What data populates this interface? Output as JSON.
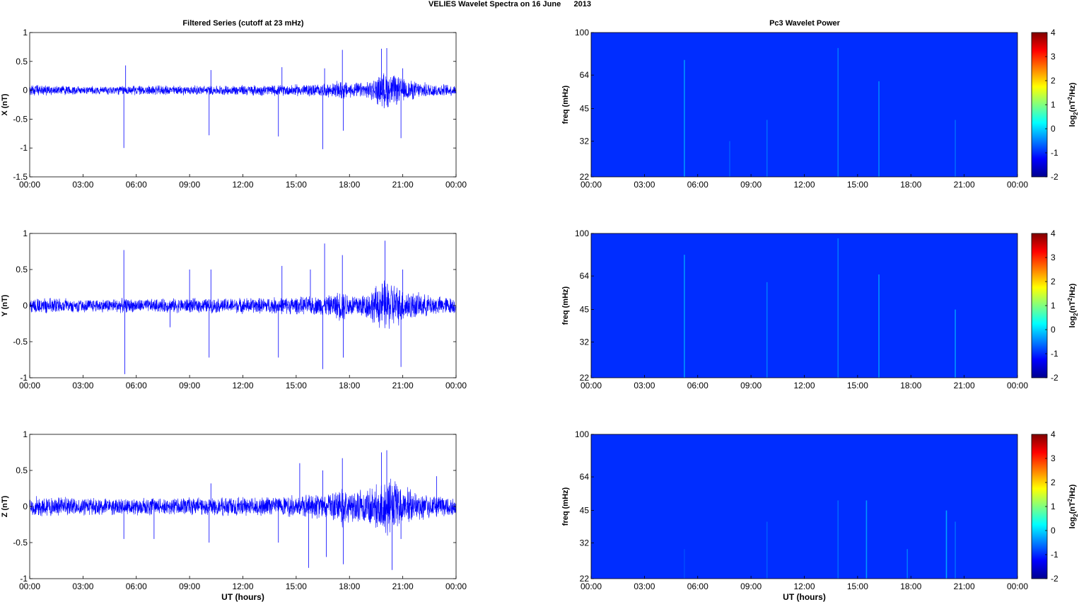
{
  "figure": {
    "title": "VELIES Wavelet Spectra on 16 June      2013",
    "left_column_title": "Filtered Series (cutoff at 23 mHz)",
    "right_column_title": "Pc3 Wavelet Power",
    "xlabel": "UT (hours)"
  },
  "colors": {
    "trace": "#0000ff",
    "spectrogram_background": "#0a1fa6",
    "colormap": "jet"
  },
  "chart_data": [
    {
      "type": "line",
      "panel": "X",
      "ylabel": "X (nT)",
      "xlim": [
        0,
        24
      ],
      "ylim": [
        -1.5,
        1
      ],
      "yticks": [
        -1.5,
        -1,
        -0.5,
        0,
        0.5,
        1
      ],
      "ytick_labels": [
        "-1.5",
        "-1",
        "-0.5",
        "0",
        "0.5",
        "1"
      ],
      "xtick_labels": [
        "00:00",
        "03:00",
        "06:00",
        "09:00",
        "12:00",
        "15:00",
        "18:00",
        "21:00",
        "00:00"
      ],
      "show_xlabel": false,
      "grid": false,
      "noise_envelope": [
        [
          0,
          0.1
        ],
        [
          1,
          0.1
        ],
        [
          2,
          0.09
        ],
        [
          3,
          0.08
        ],
        [
          4,
          0.08
        ],
        [
          5,
          0.09
        ],
        [
          6,
          0.09
        ],
        [
          7,
          0.09
        ],
        [
          8,
          0.09
        ],
        [
          9,
          0.09
        ],
        [
          10,
          0.09
        ],
        [
          11,
          0.09
        ],
        [
          12,
          0.1
        ],
        [
          13,
          0.1
        ],
        [
          14,
          0.1
        ],
        [
          15,
          0.11
        ],
        [
          16,
          0.12
        ],
        [
          17,
          0.13
        ],
        [
          17.6,
          0.2
        ],
        [
          18,
          0.14
        ],
        [
          19,
          0.15
        ],
        [
          19.5,
          0.25
        ],
        [
          20,
          0.35
        ],
        [
          20.5,
          0.3
        ],
        [
          21,
          0.22
        ],
        [
          22,
          0.15
        ],
        [
          23,
          0.12
        ],
        [
          24,
          0.1
        ]
      ],
      "spikes": [
        [
          5.3,
          -1.0
        ],
        [
          5.4,
          0.43
        ],
        [
          10.1,
          -0.78
        ],
        [
          10.2,
          0.35
        ],
        [
          14.0,
          -0.8
        ],
        [
          14.2,
          0.4
        ],
        [
          16.5,
          -1.02
        ],
        [
          16.6,
          0.38
        ],
        [
          17.6,
          0.7
        ],
        [
          17.65,
          -0.7
        ],
        [
          19.8,
          0.72
        ],
        [
          20.1,
          0.73
        ],
        [
          20.9,
          -0.83
        ],
        [
          21.0,
          0.38
        ]
      ]
    },
    {
      "type": "line",
      "panel": "Y",
      "ylabel": "Y (nT)",
      "xlim": [
        0,
        24
      ],
      "ylim": [
        -1,
        1
      ],
      "yticks": [
        -1,
        -0.5,
        0,
        0.5,
        1
      ],
      "ytick_labels": [
        "-1",
        "-0.5",
        "0",
        "0.5",
        "1"
      ],
      "xtick_labels": [
        "00:00",
        "03:00",
        "06:00",
        "09:00",
        "12:00",
        "15:00",
        "18:00",
        "21:00",
        "00:00"
      ],
      "show_xlabel": false,
      "grid": false,
      "noise_envelope": [
        [
          0,
          0.12
        ],
        [
          1,
          0.12
        ],
        [
          2,
          0.11
        ],
        [
          3,
          0.1
        ],
        [
          4,
          0.1
        ],
        [
          5,
          0.11
        ],
        [
          6,
          0.1
        ],
        [
          7,
          0.1
        ],
        [
          8,
          0.11
        ],
        [
          9,
          0.11
        ],
        [
          10,
          0.11
        ],
        [
          11,
          0.11
        ],
        [
          12,
          0.12
        ],
        [
          13,
          0.12
        ],
        [
          14,
          0.13
        ],
        [
          15,
          0.13
        ],
        [
          16,
          0.14
        ],
        [
          17,
          0.16
        ],
        [
          17.6,
          0.25
        ],
        [
          18,
          0.17
        ],
        [
          19,
          0.2
        ],
        [
          19.5,
          0.3
        ],
        [
          20,
          0.4
        ],
        [
          20.5,
          0.35
        ],
        [
          21,
          0.25
        ],
        [
          22,
          0.18
        ],
        [
          23,
          0.14
        ],
        [
          24,
          0.12
        ]
      ],
      "spikes": [
        [
          5.3,
          0.77
        ],
        [
          5.35,
          -0.95
        ],
        [
          7.9,
          -0.3
        ],
        [
          9.0,
          0.5
        ],
        [
          10.1,
          -0.72
        ],
        [
          10.2,
          0.5
        ],
        [
          14.0,
          -0.72
        ],
        [
          14.2,
          0.55
        ],
        [
          15.8,
          0.5
        ],
        [
          16.5,
          -0.88
        ],
        [
          16.6,
          0.86
        ],
        [
          17.6,
          0.7
        ],
        [
          17.65,
          -0.72
        ],
        [
          20.0,
          0.9
        ],
        [
          20.9,
          -0.85
        ],
        [
          21.0,
          0.5
        ]
      ]
    },
    {
      "type": "line",
      "panel": "Z",
      "ylabel": "Z (nT)",
      "xlim": [
        0,
        24
      ],
      "ylim": [
        -1,
        1
      ],
      "yticks": [
        -1,
        -0.5,
        0,
        0.5,
        1
      ],
      "ytick_labels": [
        "-1",
        "-0.5",
        "0",
        "0.5",
        "1"
      ],
      "xtick_labels": [
        "00:00",
        "03:00",
        "06:00",
        "09:00",
        "12:00",
        "15:00",
        "18:00",
        "21:00",
        "00:00"
      ],
      "show_xlabel": true,
      "grid": false,
      "noise_envelope": [
        [
          0,
          0.15
        ],
        [
          1,
          0.15
        ],
        [
          2,
          0.14
        ],
        [
          3,
          0.13
        ],
        [
          4,
          0.13
        ],
        [
          5,
          0.13
        ],
        [
          6,
          0.13
        ],
        [
          7,
          0.13
        ],
        [
          8,
          0.13
        ],
        [
          9,
          0.14
        ],
        [
          10,
          0.14
        ],
        [
          11,
          0.14
        ],
        [
          12,
          0.14
        ],
        [
          13,
          0.15
        ],
        [
          14,
          0.16
        ],
        [
          15,
          0.17
        ],
        [
          16,
          0.18
        ],
        [
          17,
          0.2
        ],
        [
          17.6,
          0.3
        ],
        [
          18,
          0.22
        ],
        [
          19,
          0.28
        ],
        [
          19.5,
          0.38
        ],
        [
          20,
          0.45
        ],
        [
          20.5,
          0.42
        ],
        [
          21,
          0.3
        ],
        [
          22,
          0.2
        ],
        [
          23,
          0.16
        ],
        [
          24,
          0.15
        ]
      ],
      "spikes": [
        [
          5.3,
          -0.45
        ],
        [
          7.0,
          -0.45
        ],
        [
          10.1,
          -0.5
        ],
        [
          10.2,
          0.32
        ],
        [
          14.0,
          -0.5
        ],
        [
          15.2,
          0.6
        ],
        [
          15.7,
          -0.85
        ],
        [
          16.5,
          0.5
        ],
        [
          16.7,
          -0.7
        ],
        [
          17.6,
          0.67
        ],
        [
          17.65,
          -0.8
        ],
        [
          19.8,
          0.75
        ],
        [
          20.1,
          0.78
        ],
        [
          20.4,
          -0.88
        ],
        [
          20.9,
          -0.45
        ],
        [
          22.9,
          0.42
        ]
      ]
    },
    {
      "type": "heatmap",
      "panel": "X",
      "ylabel": "freq (mHz)",
      "xlim": [
        0,
        24
      ],
      "ylim": [
        22,
        100
      ],
      "y_scale": "log",
      "ytick_labels": [
        "22",
        "32",
        "45",
        "64",
        "100"
      ],
      "yticks": [
        22,
        32,
        45,
        64,
        100
      ],
      "xtick_labels": [
        "00:00",
        "03:00",
        "06:00",
        "09:00",
        "12:00",
        "15:00",
        "18:00",
        "21:00",
        "00:00"
      ],
      "show_xlabel": false,
      "background_power": -1.7,
      "colorbar": {
        "label": "log2(nT2/Hz)",
        "range": [
          -2,
          4
        ],
        "ticks": [
          "-2",
          "-1",
          "0",
          "1",
          "2",
          "3",
          "4"
        ]
      },
      "streaks": [
        [
          5.25,
          75,
          -1.0
        ],
        [
          7.8,
          32,
          -1.4
        ],
        [
          9.9,
          40,
          -1.3
        ],
        [
          13.9,
          85,
          -1.2
        ],
        [
          16.2,
          60,
          -1.1
        ],
        [
          20.5,
          40,
          -1.3
        ]
      ]
    },
    {
      "type": "heatmap",
      "panel": "Y",
      "ylabel": "freq (mHz)",
      "xlim": [
        0,
        24
      ],
      "ylim": [
        22,
        100
      ],
      "y_scale": "log",
      "ytick_labels": [
        "22",
        "32",
        "45",
        "64",
        "100"
      ],
      "yticks": [
        22,
        32,
        45,
        64,
        100
      ],
      "xtick_labels": [
        "00:00",
        "03:00",
        "06:00",
        "09:00",
        "12:00",
        "15:00",
        "18:00",
        "21:00",
        "00:00"
      ],
      "show_xlabel": false,
      "background_power": -1.7,
      "colorbar": {
        "label": "log2(nT2/Hz)",
        "range": [
          -2,
          4
        ],
        "ticks": [
          "-2",
          "-1",
          "0",
          "1",
          "2",
          "3",
          "4"
        ]
      },
      "streaks": [
        [
          5.25,
          80,
          -1.0
        ],
        [
          9.9,
          60,
          -1.2
        ],
        [
          13.9,
          95,
          -1.2
        ],
        [
          16.2,
          65,
          -1.0
        ],
        [
          20.5,
          45,
          -1.0
        ]
      ]
    },
    {
      "type": "heatmap",
      "panel": "Z",
      "ylabel": "freq (mHz)",
      "xlim": [
        0,
        24
      ],
      "ylim": [
        22,
        100
      ],
      "y_scale": "log",
      "ytick_labels": [
        "22",
        "32",
        "45",
        "64",
        "100"
      ],
      "yticks": [
        22,
        32,
        45,
        64,
        100
      ],
      "xtick_labels": [
        "00:00",
        "03:00",
        "06:00",
        "09:00",
        "12:00",
        "15:00",
        "18:00",
        "21:00",
        "00:00"
      ],
      "show_xlabel": true,
      "background_power": -1.7,
      "colorbar": {
        "label": "log2(nT2/Hz)",
        "range": [
          -2,
          4
        ],
        "ticks": [
          "-2",
          "-1",
          "0",
          "1",
          "2",
          "3",
          "4"
        ]
      },
      "streaks": [
        [
          5.25,
          30,
          -1.5
        ],
        [
          9.9,
          40,
          -1.4
        ],
        [
          13.9,
          50,
          -1.3
        ],
        [
          15.5,
          50,
          -1.0
        ],
        [
          17.8,
          30,
          -1.2
        ],
        [
          20.0,
          45,
          -0.9
        ],
        [
          20.5,
          40,
          -1.3
        ]
      ]
    }
  ]
}
